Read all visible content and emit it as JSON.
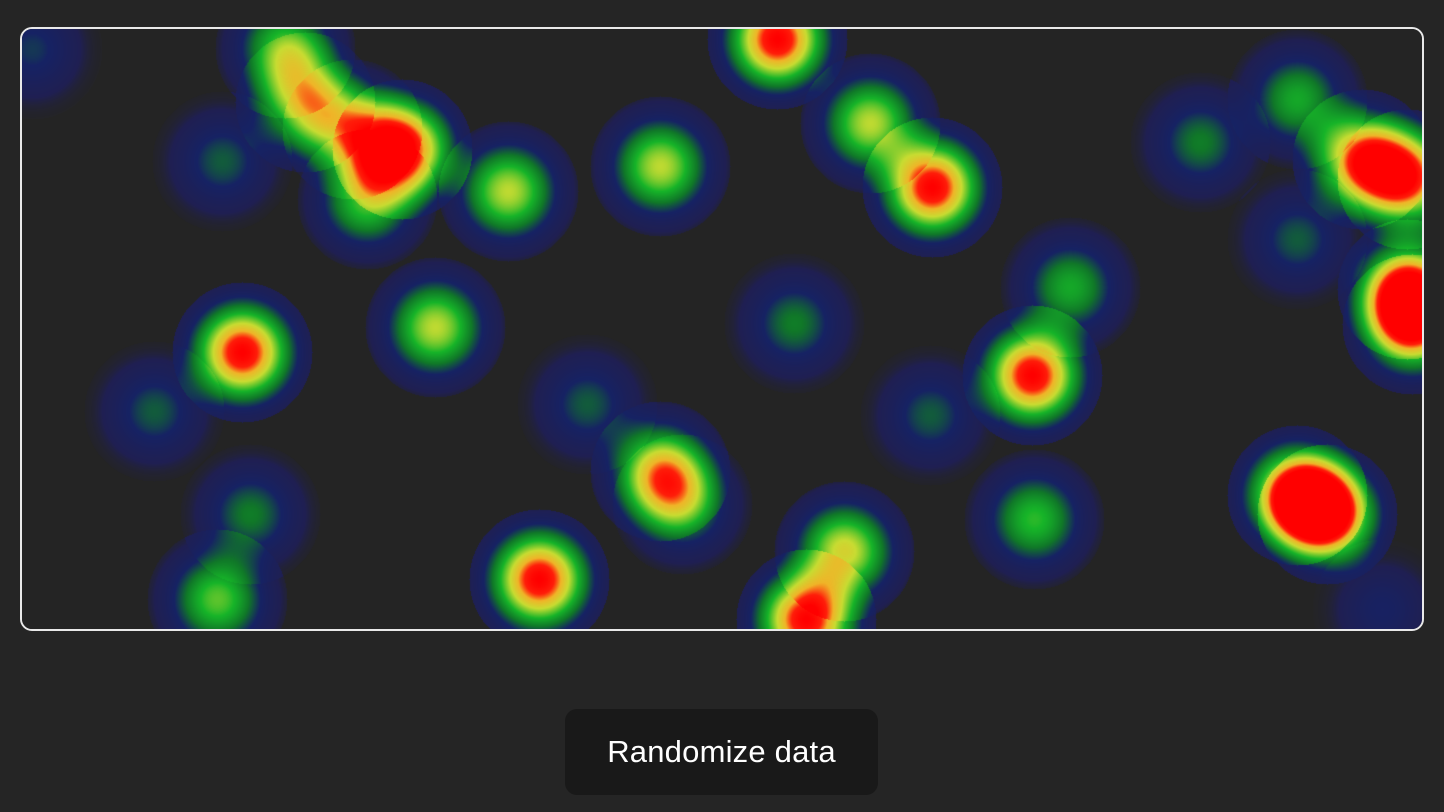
{
  "heatmap": {
    "colors": {
      "low": "#1f1f6e",
      "mid_low": "#0f7a2a",
      "mid": "#15b82a",
      "mid_high": "#c8dc30",
      "high": "#ff0000"
    },
    "background": "#242424",
    "border": "#e9e9e9"
  },
  "chart_data": {
    "type": "heatmap",
    "points": [
      {
        "x": 10,
        "y": 20,
        "v": 0.25
      },
      {
        "x": 263,
        "y": 19,
        "v": 0.55
      },
      {
        "x": 283,
        "y": 73,
        "v": 0.6
      },
      {
        "x": 330,
        "y": 100,
        "v": 0.55
      },
      {
        "x": 380,
        "y": 120,
        "v": 1.0
      },
      {
        "x": 345,
        "y": 170,
        "v": 0.55
      },
      {
        "x": 200,
        "y": 132,
        "v": 0.3
      },
      {
        "x": 486,
        "y": 162,
        "v": 0.65
      },
      {
        "x": 638,
        "y": 137,
        "v": 0.65
      },
      {
        "x": 755,
        "y": 10,
        "v": 1.0
      },
      {
        "x": 848,
        "y": 94,
        "v": 0.65
      },
      {
        "x": 910,
        "y": 158,
        "v": 1.0
      },
      {
        "x": 1178,
        "y": 113,
        "v": 0.35
      },
      {
        "x": 1275,
        "y": 70,
        "v": 0.45
      },
      {
        "x": 1340,
        "y": 130,
        "v": 0.85
      },
      {
        "x": 1385,
        "y": 150,
        "v": 0.85
      },
      {
        "x": 1275,
        "y": 210,
        "v": 0.3
      },
      {
        "x": 1385,
        "y": 260,
        "v": 0.9
      },
      {
        "x": 1390,
        "y": 295,
        "v": 0.85
      },
      {
        "x": 220,
        "y": 323,
        "v": 1.0
      },
      {
        "x": 132,
        "y": 382,
        "v": 0.3
      },
      {
        "x": 413,
        "y": 298,
        "v": 0.65
      },
      {
        "x": 772,
        "y": 294,
        "v": 0.35
      },
      {
        "x": 565,
        "y": 375,
        "v": 0.3
      },
      {
        "x": 638,
        "y": 442,
        "v": 0.7
      },
      {
        "x": 660,
        "y": 475,
        "v": 0.45
      },
      {
        "x": 908,
        "y": 386,
        "v": 0.3
      },
      {
        "x": 1048,
        "y": 258,
        "v": 0.45
      },
      {
        "x": 1010,
        "y": 346,
        "v": 1.0
      },
      {
        "x": 1012,
        "y": 490,
        "v": 0.5
      },
      {
        "x": 1275,
        "y": 466,
        "v": 1.0
      },
      {
        "x": 1305,
        "y": 485,
        "v": 1.0
      },
      {
        "x": 228,
        "y": 485,
        "v": 0.35
      },
      {
        "x": 195,
        "y": 570,
        "v": 0.55
      },
      {
        "x": 517,
        "y": 550,
        "v": 1.0
      },
      {
        "x": 822,
        "y": 522,
        "v": 0.7
      },
      {
        "x": 784,
        "y": 590,
        "v": 1.0
      },
      {
        "x": 1360,
        "y": 580,
        "v": 0.2
      }
    ],
    "xlim": [
      0,
      1400
    ],
    "ylim": [
      0,
      600
    ]
  },
  "controls": {
    "randomize_label": "Randomize data"
  }
}
